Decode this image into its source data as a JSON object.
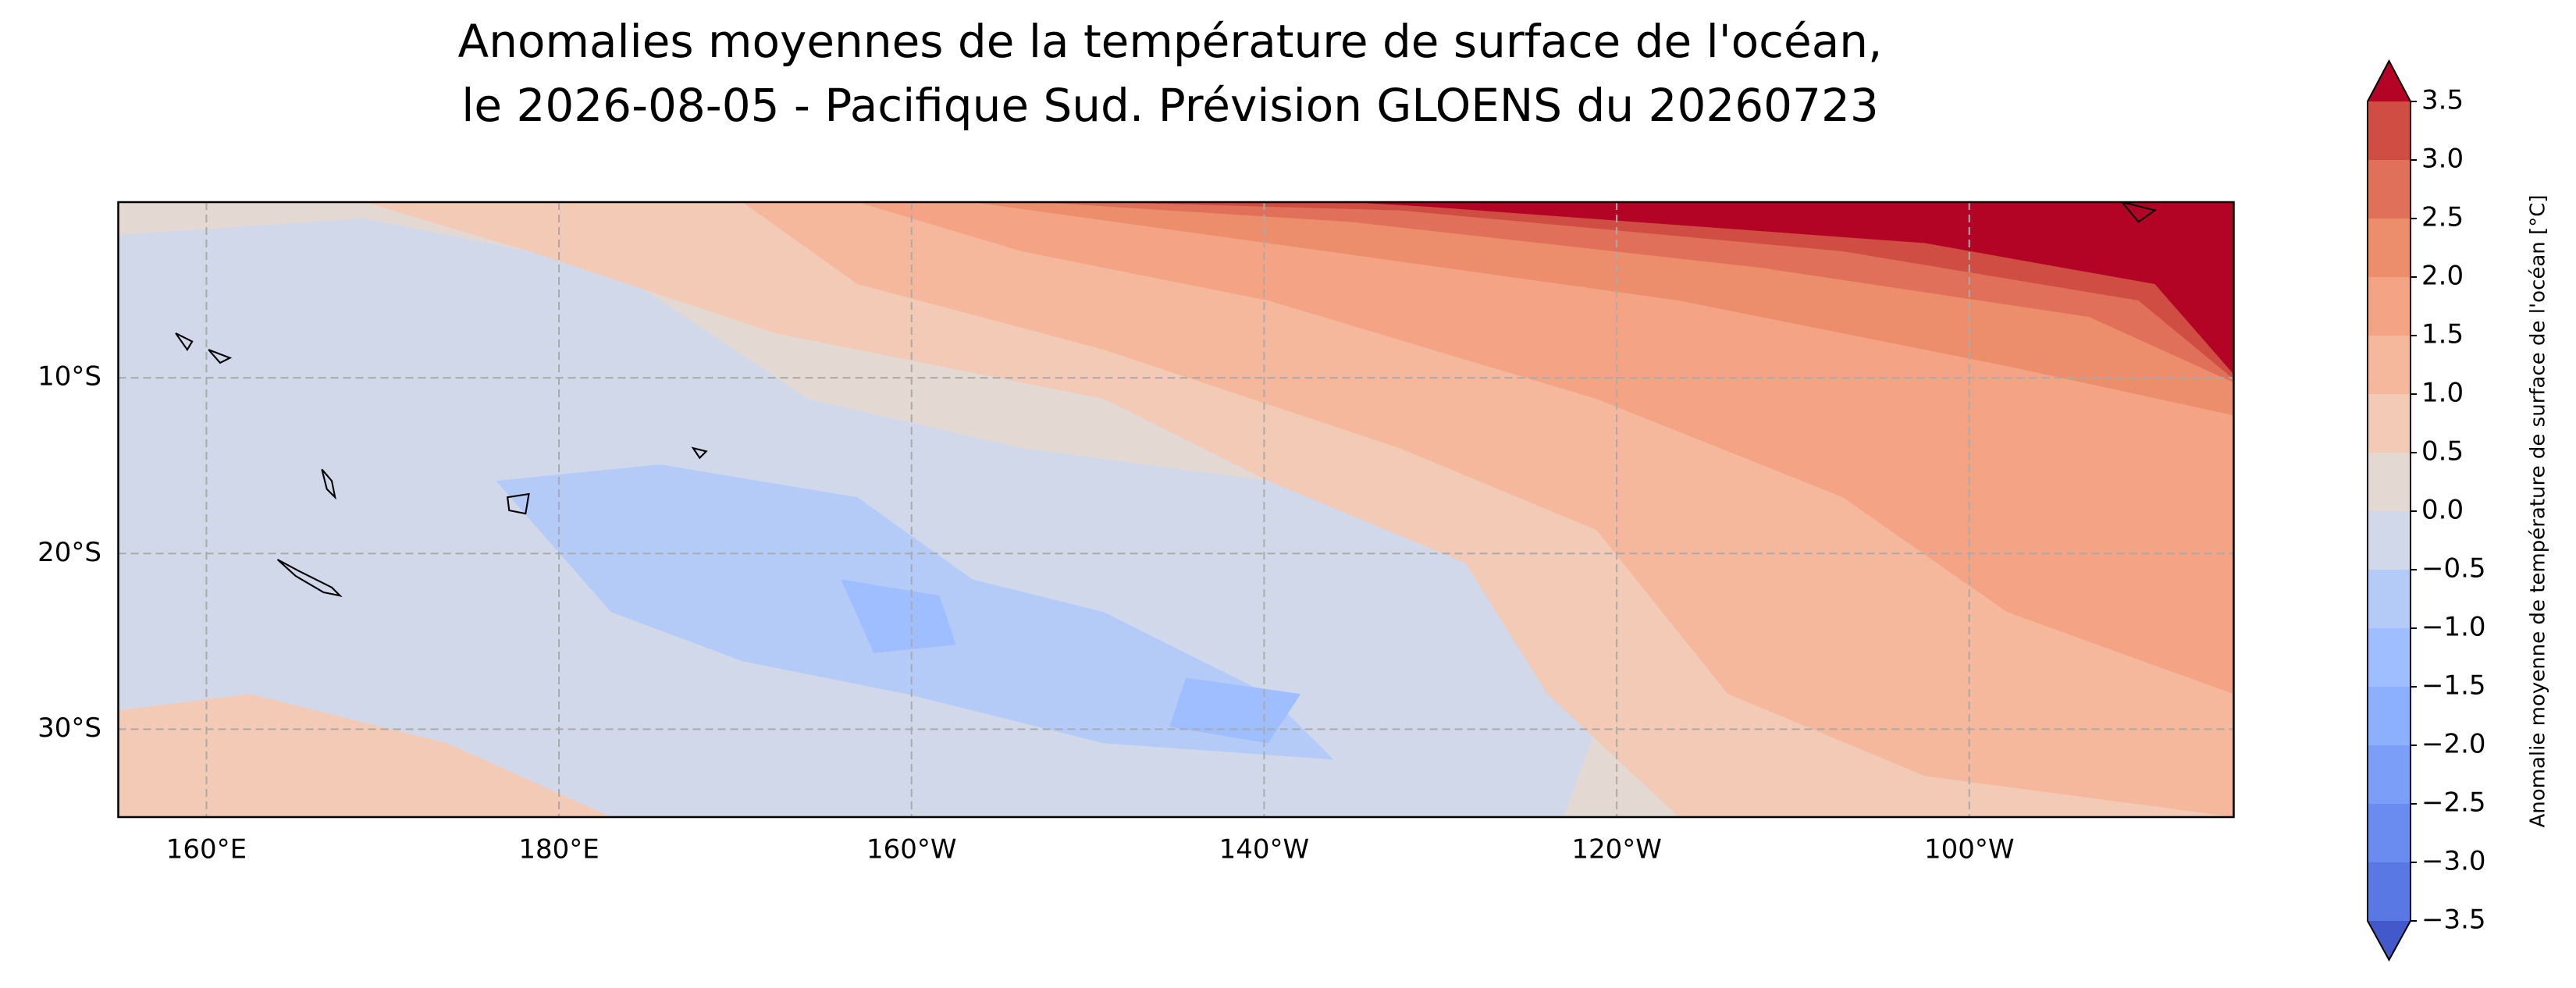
{
  "chart_data": {
    "type": "contourf-map",
    "title": [
      "Anomalies moyennes de la température de surface de l'océan,",
      " le 2026-08-05 - Pacifique Sud. Prévision GLOENS du 20260723"
    ],
    "xlim": [
      155,
      275
    ],
    "ylim": [
      -35,
      0
    ],
    "xticks": [
      {
        "value": 160,
        "label": "160°E"
      },
      {
        "value": 180,
        "label": "180°E"
      },
      {
        "value": 200,
        "label": "160°W"
      },
      {
        "value": 220,
        "label": "140°W"
      },
      {
        "value": 240,
        "label": "120°W"
      },
      {
        "value": 260,
        "label": "100°W"
      }
    ],
    "yticks": [
      {
        "value": -10,
        "label": "10°S"
      },
      {
        "value": -20,
        "label": "20°S"
      },
      {
        "value": -30,
        "label": "30°S"
      }
    ],
    "grid": true,
    "colorbar": {
      "label": "Anomalie moyenne de température de surface de l'océan [°C]",
      "extend": "both",
      "clim": [
        -3.5,
        3.5
      ],
      "ticks": [
        {
          "value": -3.5,
          "label": "−3.5"
        },
        {
          "value": -3.0,
          "label": "−3.0"
        },
        {
          "value": -2.5,
          "label": "−2.5"
        },
        {
          "value": -2.0,
          "label": "−2.0"
        },
        {
          "value": -1.5,
          "label": "−1.5"
        },
        {
          "value": -1.0,
          "label": "−1.0"
        },
        {
          "value": -0.5,
          "label": "−0.5"
        },
        {
          "value": 0,
          "label": "0.0"
        },
        0.5,
        {
          "value": 1,
          "label": "1.0"
        },
        1.5,
        {
          "value": 2,
          "label": "2.0"
        },
        2.5,
        {
          "value": 3,
          "label": "3.0"
        },
        3.5
      ],
      "colors": [
        "#4358cb",
        "#5a78e4",
        "#6a8bef",
        "#7b9ff9",
        "#8db0fe",
        "#9ebeff",
        "#b4cbf8",
        "#d0d8ea",
        "#e4d9d2",
        "#f3cab6",
        "#f6b89d",
        "#f4a384",
        "#ec8d6c",
        "#e0705a",
        "#cf4d42",
        "#b40426"
      ]
    }
  }
}
